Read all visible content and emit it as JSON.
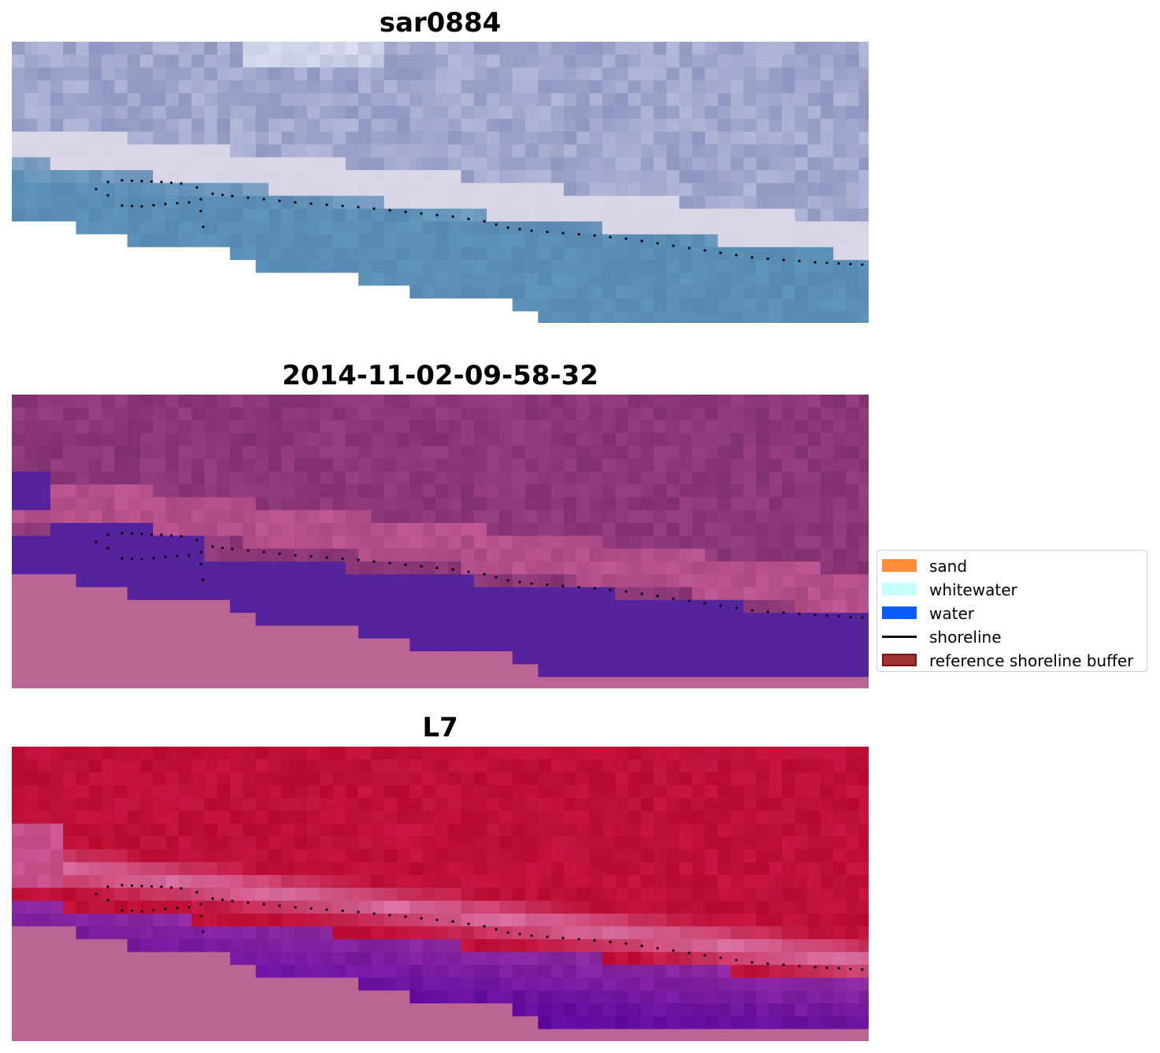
{
  "panels": [
    {
      "title": "sar0884"
    },
    {
      "title": "2014-11-02-09-58-32"
    },
    {
      "title": "L7"
    }
  ],
  "legend": {
    "items": [
      {
        "label": "sand",
        "kind": "patch",
        "color": "#ff8c3a",
        "edge": "none"
      },
      {
        "label": "whitewater",
        "kind": "patch",
        "color": "#c8ffff",
        "edge": "none"
      },
      {
        "label": "water",
        "kind": "patch",
        "color": "#0a5cff",
        "edge": "none"
      },
      {
        "label": "shoreline",
        "kind": "line",
        "color": "#000000",
        "edge": "none"
      },
      {
        "label": "reference shoreline buffer",
        "kind": "patch",
        "color": "#a03232",
        "edge": "#7a1010"
      }
    ]
  },
  "colors": {
    "nodata_fill": "#bc6494",
    "water_class": "#55239c",
    "shoreline_dots": "#000000"
  }
}
